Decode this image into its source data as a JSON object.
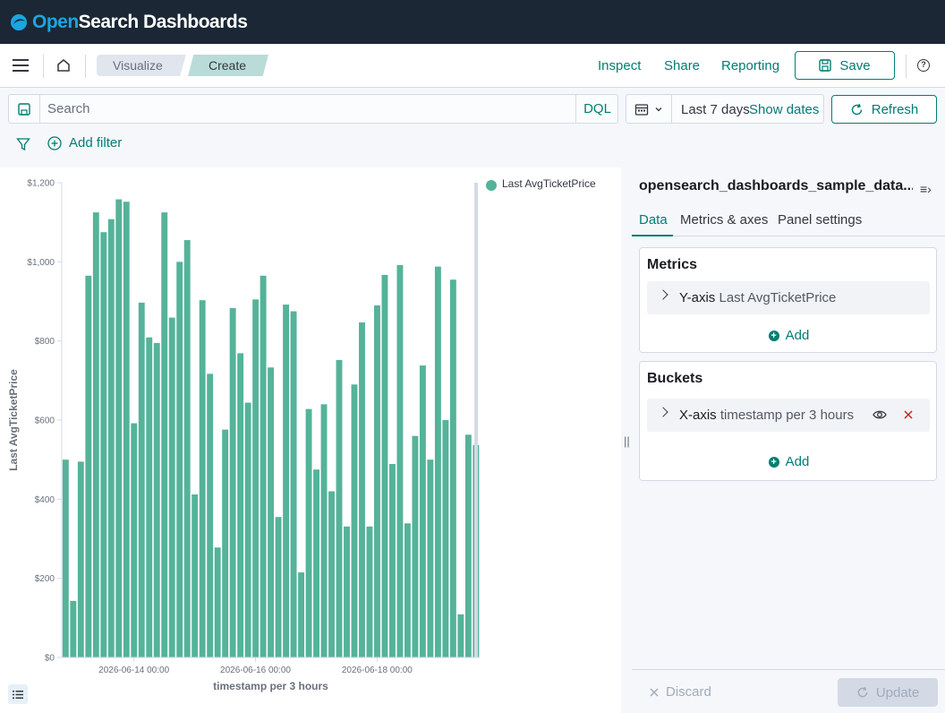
{
  "brand": {
    "name_part1": "Open",
    "name_part2": "Search Dashboards"
  },
  "breadcrumbs": [
    "Visualize",
    "Create"
  ],
  "nav": {
    "inspect": "Inspect",
    "share": "Share",
    "reporting": "Reporting",
    "save": "Save"
  },
  "query": {
    "placeholder": "Search",
    "language": "DQL"
  },
  "time": {
    "range": "Last 7 days",
    "show_dates": "Show dates",
    "refresh": "Refresh"
  },
  "filters": {
    "add_filter": "Add filter"
  },
  "sidebar": {
    "index_title": "opensearch_dashboards_sample_data...",
    "tabs": [
      "Data",
      "Metrics & axes",
      "Panel settings"
    ],
    "metrics": {
      "title": "Metrics",
      "axis": "Y-axis",
      "agg": "Last AvgTicketPrice",
      "add": "Add"
    },
    "buckets": {
      "title": "Buckets",
      "axis": "X-axis",
      "agg": "timestamp per 3 hours",
      "add": "Add"
    }
  },
  "footer": {
    "discard": "Discard",
    "update": "Update"
  },
  "colors": {
    "accent": "#017d73",
    "bar": "#54b399",
    "header_bg": "#1b2735"
  },
  "chart_data": {
    "type": "bar",
    "title": "",
    "xlabel": "timestamp per 3 hours",
    "ylabel": "Last AvgTicketPrice",
    "ylim": [
      0,
      1200
    ],
    "yticks": [
      "$0",
      "$200",
      "$400",
      "$600",
      "$800",
      "$1,000",
      "$1,200"
    ],
    "ytick_values": [
      0,
      200,
      400,
      600,
      800,
      1000,
      1200
    ],
    "xtick_labels": [
      "2026-06-14 00:00",
      "2026-06-16 00:00",
      "2026-06-18 00:00"
    ],
    "xtick_bar_index": [
      9,
      25,
      41
    ],
    "legend": {
      "position": "top-right",
      "entries": [
        "Last AvgTicketPrice"
      ]
    },
    "series": [
      {
        "name": "Last AvgTicketPrice",
        "values": [
          500,
          143,
          495,
          965,
          1125,
          1075,
          1108,
          1158,
          1152,
          592,
          897,
          809,
          795,
          1125,
          859,
          1000,
          1055,
          412,
          903,
          717,
          278,
          576,
          883,
          769,
          644,
          905,
          965,
          733,
          355,
          892,
          875,
          215,
          628,
          475,
          640,
          420,
          752,
          331,
          690,
          847,
          331,
          890,
          967,
          489,
          992,
          339,
          560,
          738,
          500,
          988,
          600,
          955,
          109,
          563,
          537
        ]
      }
    ]
  }
}
